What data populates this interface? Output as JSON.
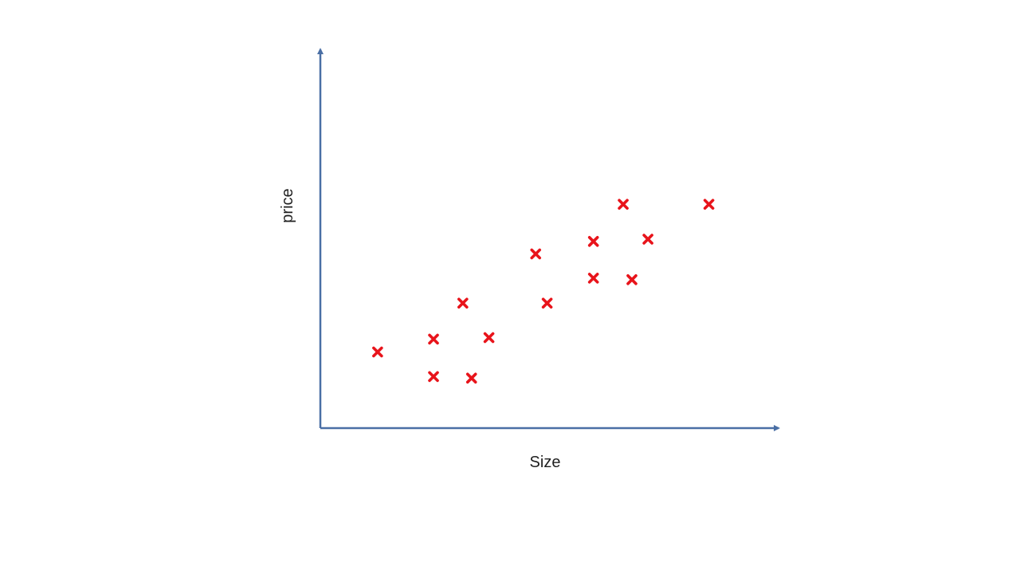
{
  "chart_data": {
    "type": "scatter",
    "title": "",
    "xlabel": "Size",
    "ylabel": "price",
    "grid": false,
    "legend": "none",
    "xlim": [
      0,
      100
    ],
    "ylim": [
      0,
      100
    ],
    "marker": "x",
    "colors": {
      "axis": "#4a6fa5",
      "marker": "#e8141b",
      "text": "#1f1f1f"
    },
    "series": [
      {
        "points": [
          {
            "x": 12.5,
            "y": 20.1
          },
          {
            "x": 24.7,
            "y": 23.5
          },
          {
            "x": 24.7,
            "y": 13.6
          },
          {
            "x": 31.1,
            "y": 33.0
          },
          {
            "x": 33.0,
            "y": 13.2
          },
          {
            "x": 36.8,
            "y": 23.9
          },
          {
            "x": 47.0,
            "y": 46.0
          },
          {
            "x": 49.5,
            "y": 33.0
          },
          {
            "x": 59.6,
            "y": 49.3
          },
          {
            "x": 59.6,
            "y": 39.6
          },
          {
            "x": 66.1,
            "y": 59.1
          },
          {
            "x": 68.0,
            "y": 39.2
          },
          {
            "x": 71.5,
            "y": 49.9
          },
          {
            "x": 84.8,
            "y": 59.1
          }
        ]
      }
    ]
  }
}
